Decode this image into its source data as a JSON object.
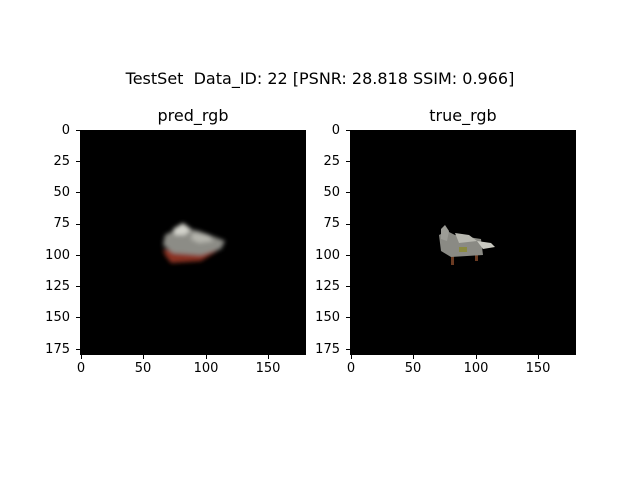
{
  "figure": {
    "suptitle": "TestSet  Data_ID: 22 [PSNR: 28.818 SSIM: 0.966]"
  },
  "panels": [
    {
      "title": "pred_rgb",
      "y_ticks": [
        "0",
        "25",
        "50",
        "75",
        "100",
        "125",
        "150",
        "175"
      ],
      "x_ticks": [
        "0",
        "50",
        "100",
        "150"
      ]
    },
    {
      "title": "true_rgb",
      "y_ticks": [
        "0",
        "25",
        "50",
        "75",
        "100",
        "125",
        "150",
        "175"
      ],
      "x_ticks": [
        "0",
        "50",
        "100",
        "150"
      ]
    }
  ],
  "colors": {
    "background": "#000000",
    "object_gray": "#8a8a84",
    "object_light": "#c9c9c1",
    "object_red": "#a33a2a",
    "object_brown": "#6b3b22"
  }
}
